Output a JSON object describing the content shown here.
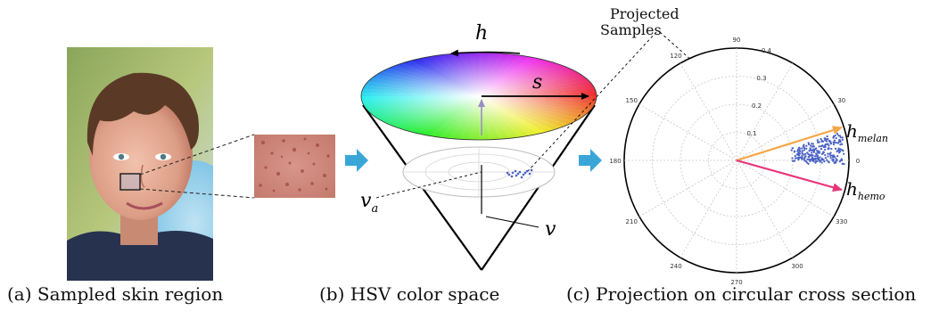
{
  "panels": {
    "a": {
      "caption": "(a) Sampled skin region"
    },
    "b": {
      "caption": "(b) HSV color space",
      "label_h": "h",
      "label_s": "s",
      "label_v": "v",
      "label_va": "v",
      "label_va_sub": "a",
      "projected_label_line1": "Projected",
      "projected_label_line2": "Samples"
    },
    "c": {
      "caption": "(c) Projection on circular cross section",
      "angle_labels": [
        "90",
        "120",
        "150",
        "180",
        "210",
        "240",
        "270",
        "300",
        "330",
        "0",
        "30"
      ],
      "radial_labels": [
        "0.1",
        "0.2",
        "0.3",
        "0.4"
      ],
      "label_melan": "h",
      "label_melan_sub": "melan",
      "label_hemo": "h",
      "label_hemo_sub": "hemo"
    }
  },
  "colors": {
    "arrow_blue": "#3aa6d8",
    "melan_arrow": "#f4a648",
    "hemo_arrow": "#e8357a",
    "samples": "#4b63c4"
  }
}
